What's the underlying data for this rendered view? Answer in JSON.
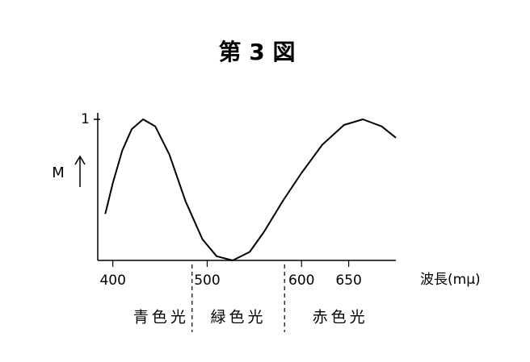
{
  "chart_data": {
    "type": "line",
    "title": "第 3 図",
    "y_label": "M",
    "x_label": "波長(mμ)",
    "x": [
      392,
      400,
      410,
      420,
      432,
      445,
      460,
      477,
      495,
      510,
      527,
      545,
      560,
      580,
      600,
      622,
      645,
      665,
      685,
      700
    ],
    "series": [
      {
        "color": "#000000",
        "values": [
          0.33,
          0.55,
          0.78,
          0.93,
          1.0,
          0.95,
          0.75,
          0.42,
          0.15,
          0.03,
          0,
          0.06,
          0.2,
          0.42,
          0.62,
          0.82,
          0.96,
          1.0,
          0.95,
          0.87
        ]
      }
    ],
    "xlim": [
      384,
      700
    ],
    "xticks": [
      400,
      500,
      600,
      650
    ],
    "ylim": [
      0,
      1
    ],
    "yticks": [
      1
    ],
    "region_bounds": [
      484,
      582
    ],
    "regions": [
      "青色光",
      "緑色光",
      "赤色光"
    ]
  }
}
